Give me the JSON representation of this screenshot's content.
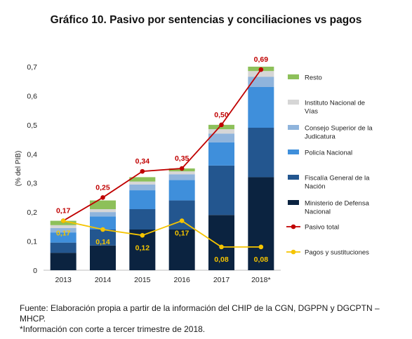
{
  "title": "Gráfico 10. Pasivo por sentencias y conciliaciones vs pagos",
  "footnote": {
    "source": "Fuente: Elaboración propia a partir de la información del CHIP de la CGN, DGPPN y DGCPTN – MHCP.",
    "note": "*Información con corte a tercer trimestre de 2018."
  },
  "chart_data": {
    "type": "bar",
    "stacked": true,
    "ylabel": "(% del PIB)",
    "ylim": [
      0,
      0.7
    ],
    "yticks": [
      "0",
      "0,1",
      "0,2",
      "0,3",
      "0,4",
      "0,5",
      "0,6",
      "0,7"
    ],
    "categories": [
      "2013",
      "2014",
      "2015",
      "2016",
      "2017",
      "2018*"
    ],
    "series": [
      {
        "name": "Ministerio de Defensa Nacional",
        "color": "#0b2340",
        "values": [
          0.06,
          0.085,
          0.14,
          0.14,
          0.19,
          0.32
        ]
      },
      {
        "name": "Fiscalía General de la Nación",
        "color": "#23568f",
        "values": [
          0.035,
          0.055,
          0.07,
          0.1,
          0.17,
          0.17
        ]
      },
      {
        "name": "Policía Nacional",
        "color": "#3f8fdb",
        "values": [
          0.035,
          0.045,
          0.065,
          0.07,
          0.08,
          0.14
        ]
      },
      {
        "name": "Consejo Superior de la Judicatura",
        "color": "#8fb4dc",
        "values": [
          0.015,
          0.015,
          0.02,
          0.02,
          0.03,
          0.035
        ]
      },
      {
        "name": "Instituto Nacional de Vías",
        "color": "#d6d6d6",
        "values": [
          0.01,
          0.01,
          0.01,
          0.01,
          0.015,
          0.02
        ]
      },
      {
        "name": "Resto",
        "color": "#8dc05a",
        "values": [
          0.015,
          0.03,
          0.015,
          0.01,
          0.015,
          0.015
        ]
      }
    ],
    "lines": [
      {
        "name": "Pasivo total",
        "color": "#c00000",
        "values": [
          0.17,
          0.25,
          0.34,
          0.35,
          0.5,
          0.69
        ],
        "labels": [
          "0,17",
          "0,25",
          "0,34",
          "0,35",
          "0,50",
          "0,69"
        ]
      },
      {
        "name": "Pagos y sustituciones",
        "color": "#f5c400",
        "values": [
          0.17,
          0.14,
          0.12,
          0.17,
          0.08,
          0.08
        ],
        "labels": [
          "0,17",
          "0,14",
          "0,12",
          "0,17",
          "0,08",
          "0,08"
        ]
      }
    ],
    "legend": "right",
    "grid": false
  }
}
